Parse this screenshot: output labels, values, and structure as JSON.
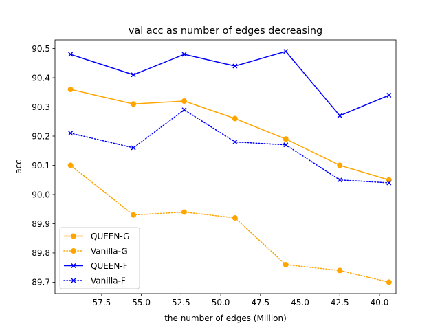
{
  "chart_data": {
    "type": "line",
    "title": "val acc as number of edges decreasing",
    "xlabel": "the number of edges (Million)",
    "ylabel": "acc",
    "x_inverted": true,
    "xlim": [
      60.44,
      38.96
    ],
    "ylim": [
      89.661,
      90.5295
    ],
    "xticks": [
      57.5,
      55.0,
      52.5,
      50.0,
      47.5,
      45.0,
      42.5,
      40.0
    ],
    "xtick_labels": [
      "57.5",
      "55.0",
      "52.5",
      "50.0",
      "47.5",
      "45.0",
      "42.5",
      "40.0"
    ],
    "yticks": [
      89.7,
      89.8,
      89.9,
      90.0,
      90.1,
      90.2,
      90.3,
      90.4,
      90.5
    ],
    "ytick_labels": [
      "89.7",
      "89.8",
      "89.9",
      "90.0",
      "90.1",
      "90.2",
      "90.3",
      "90.4",
      "90.5"
    ],
    "x": [
      59.46,
      55.5,
      52.3,
      49.1,
      45.9,
      42.5,
      39.4
    ],
    "grid": false,
    "legend_position": "lower-left",
    "series": [
      {
        "name": "QUEEN-G",
        "values": [
          90.36,
          90.31,
          90.32,
          90.26,
          90.19,
          90.1,
          90.05
        ],
        "color": "#ffa500",
        "line_style": "solid",
        "marker": "circle"
      },
      {
        "name": "Vanilla-G",
        "values": [
          90.1,
          89.93,
          89.94,
          89.92,
          89.76,
          89.74,
          89.7
        ],
        "color": "#ffa500",
        "line_style": "dotted",
        "marker": "circle"
      },
      {
        "name": "QUEEN-F",
        "values": [
          90.48,
          90.41,
          90.48,
          90.44,
          90.49,
          90.27,
          90.34
        ],
        "color": "#0000ff",
        "line_style": "solid",
        "marker": "x"
      },
      {
        "name": "Vanilla-F",
        "values": [
          90.21,
          90.16,
          90.29,
          90.18,
          90.17,
          90.05,
          90.04
        ],
        "color": "#0000ff",
        "line_style": "dotted",
        "marker": "x"
      }
    ]
  }
}
